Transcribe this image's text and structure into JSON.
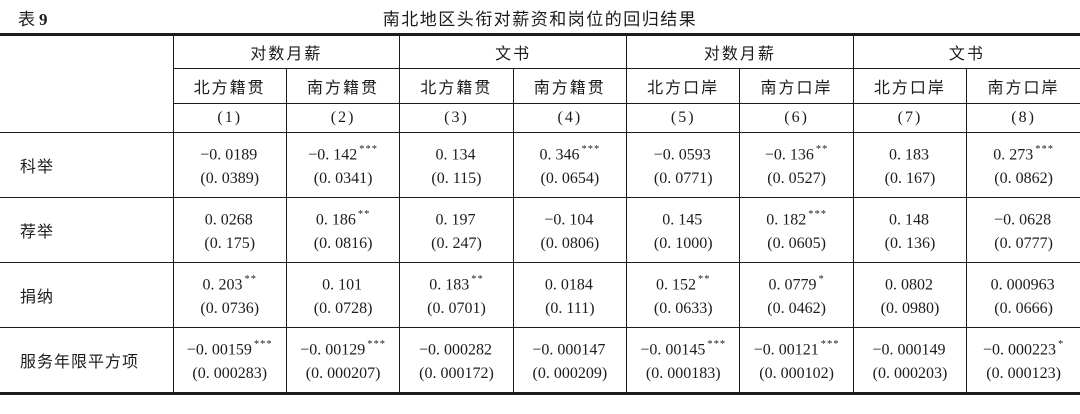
{
  "caption": {
    "label": "表",
    "number": "9",
    "title": "南北地区头衔对薪资和岗位的回归结果"
  },
  "header": {
    "groups": [
      {
        "label": "对数月薪"
      },
      {
        "label": "文书"
      },
      {
        "label": "对数月薪"
      },
      {
        "label": "文书"
      }
    ],
    "subheaders": [
      "北方籍贯",
      "南方籍贯",
      "北方籍贯",
      "南方籍贯",
      "北方口岸",
      "南方口岸",
      "北方口岸",
      "南方口岸"
    ],
    "column_numbers": [
      "(1)",
      "(2)",
      "(3)",
      "(4)",
      "(5)",
      "(6)",
      "(7)",
      "(8)"
    ]
  },
  "rows": [
    {
      "label": "科举",
      "cells": [
        {
          "coef": "−0. 0189",
          "stars": "",
          "se": "(0. 0389)"
        },
        {
          "coef": "−0. 142",
          "stars": "***",
          "se": "(0. 0341)"
        },
        {
          "coef": "0. 134",
          "stars": "",
          "se": "(0. 115)"
        },
        {
          "coef": "0. 346",
          "stars": "***",
          "se": "(0. 0654)"
        },
        {
          "coef": "−0. 0593",
          "stars": "",
          "se": "(0. 0771)"
        },
        {
          "coef": "−0. 136",
          "stars": "**",
          "se": "(0. 0527)"
        },
        {
          "coef": "0. 183",
          "stars": "",
          "se": "(0. 167)"
        },
        {
          "coef": "0. 273",
          "stars": "***",
          "se": "(0. 0862)"
        }
      ]
    },
    {
      "label": "荐举",
      "cells": [
        {
          "coef": "0. 0268",
          "stars": "",
          "se": "(0. 175)"
        },
        {
          "coef": "0. 186",
          "stars": "**",
          "se": "(0. 0816)"
        },
        {
          "coef": "0. 197",
          "stars": "",
          "se": "(0. 247)"
        },
        {
          "coef": "−0. 104",
          "stars": "",
          "se": "(0. 0806)"
        },
        {
          "coef": "0. 145",
          "stars": "",
          "se": "(0. 1000)"
        },
        {
          "coef": "0. 182",
          "stars": "***",
          "se": "(0. 0605)"
        },
        {
          "coef": "0. 148",
          "stars": "",
          "se": "(0. 136)"
        },
        {
          "coef": "−0. 0628",
          "stars": "",
          "se": "(0. 0777)"
        }
      ]
    },
    {
      "label": "捐纳",
      "cells": [
        {
          "coef": "0. 203",
          "stars": "**",
          "se": "(0. 0736)"
        },
        {
          "coef": "0. 101",
          "stars": "",
          "se": "(0. 0728)"
        },
        {
          "coef": "0. 183",
          "stars": "**",
          "se": "(0. 0701)"
        },
        {
          "coef": "0. 0184",
          "stars": "",
          "se": "(0. 111)"
        },
        {
          "coef": "0. 152",
          "stars": "**",
          "se": "(0. 0633)"
        },
        {
          "coef": "0. 0779",
          "stars": "*",
          "se": "(0. 0462)"
        },
        {
          "coef": "0. 0802",
          "stars": "",
          "se": "(0. 0980)"
        },
        {
          "coef": "0. 000963",
          "stars": "",
          "se": "(0. 0666)"
        }
      ]
    },
    {
      "label": "服务年限平方项",
      "cells": [
        {
          "coef": "−0. 00159",
          "stars": "***",
          "se": "(0. 000283)"
        },
        {
          "coef": "−0. 00129",
          "stars": "***",
          "se": "(0. 000207)"
        },
        {
          "coef": "−0. 000282",
          "stars": "",
          "se": "(0. 000172)"
        },
        {
          "coef": "−0. 000147",
          "stars": "",
          "se": "(0. 000209)"
        },
        {
          "coef": "−0. 00145",
          "stars": "***",
          "se": "(0. 000183)"
        },
        {
          "coef": "−0. 00121",
          "stars": "***",
          "se": "(0. 000102)"
        },
        {
          "coef": "−0. 000149",
          "stars": "",
          "se": "(0. 000203)"
        },
        {
          "coef": "−0. 000223",
          "stars": "*",
          "se": "(0. 000123)"
        }
      ]
    }
  ]
}
